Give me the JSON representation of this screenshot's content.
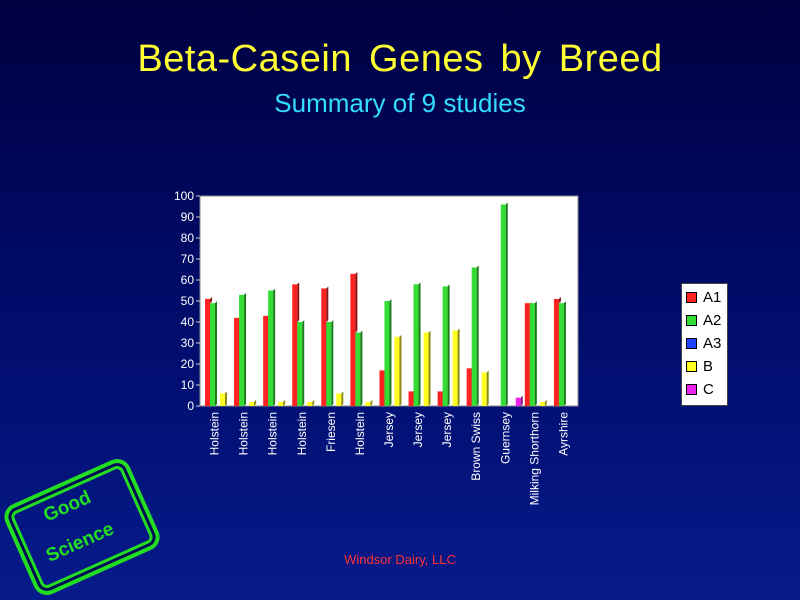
{
  "header": {
    "title": "Beta-Casein  Genes  by  Breed",
    "subtitle": "Summary of  9 studies"
  },
  "footer": {
    "text": "Windsor Dairy, LLC"
  },
  "stamp": {
    "line1": "Good",
    "line2": "Science",
    "color": "#22dd22"
  },
  "colors": {
    "A1": "#ff2222",
    "A2": "#33dd33",
    "A3": "#2244ff",
    "B": "#ffff22",
    "C": "#ee22ee",
    "plot_background": "#ffffff",
    "title": "#ffff33",
    "subtitle": "#33ddff",
    "footer": "#ff3333"
  },
  "chart_data": {
    "type": "bar",
    "title": "",
    "xlabel": "",
    "ylabel": "",
    "ylim": [
      0,
      100
    ],
    "yticks": [
      0,
      10,
      20,
      30,
      40,
      50,
      60,
      70,
      80,
      90,
      100
    ],
    "grid": false,
    "legend_position": "right",
    "categories": [
      "Holstein",
      "Holstein",
      "Holstein",
      "Holstein",
      "Friesen",
      "Holstein",
      "Jersey",
      "Jersey",
      "Jersey",
      "Brown Swiss",
      "Guernsey",
      "Milking Shorthorn",
      "Ayrshire"
    ],
    "series": [
      {
        "name": "A1",
        "values": [
          51,
          42,
          43,
          58,
          56,
          63,
          17,
          7,
          7,
          18,
          0,
          49,
          51
        ]
      },
      {
        "name": "A2",
        "values": [
          49,
          53,
          55,
          40,
          40,
          35,
          50,
          58,
          57,
          66,
          96,
          49,
          49
        ]
      },
      {
        "name": "A3",
        "values": [
          0,
          0,
          0,
          0,
          0,
          0,
          0,
          0,
          0,
          0,
          0,
          0,
          0
        ]
      },
      {
        "name": "B",
        "values": [
          6,
          2,
          2,
          2,
          6,
          2,
          33,
          35,
          36,
          16,
          0,
          2,
          0
        ]
      },
      {
        "name": "C",
        "values": [
          0,
          0,
          0,
          0,
          0,
          0,
          0,
          0,
          0,
          0,
          4,
          0,
          0
        ]
      }
    ]
  }
}
